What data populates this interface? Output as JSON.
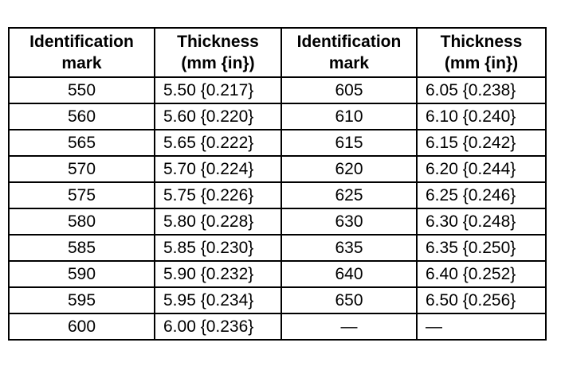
{
  "table": {
    "header": [
      [
        "Identification",
        "mark"
      ],
      [
        "Thickness",
        "(mm {in})"
      ],
      [
        "Identification",
        "mark"
      ],
      [
        "Thickness",
        "(mm {in})"
      ]
    ],
    "rows": [
      [
        "550",
        "5.50 {0.217}",
        "605",
        "6.05 {0.238}"
      ],
      [
        "560",
        "5.60 {0.220}",
        "610",
        "6.10 {0.240}"
      ],
      [
        "565",
        "5.65 {0.222}",
        "615",
        "6.15 {0.242}"
      ],
      [
        "570",
        "5.70 {0.224}",
        "620",
        "6.20 {0.244}"
      ],
      [
        "575",
        "5.75 {0.226}",
        "625",
        "6.25 {0.246}"
      ],
      [
        "580",
        "5.80 {0.228}",
        "630",
        "6.30 {0.248}"
      ],
      [
        "585",
        "5.85 {0.230}",
        "635",
        "6.35 {0.250}"
      ],
      [
        "590",
        "5.90 {0.232}",
        "640",
        "6.40 {0.252}"
      ],
      [
        "595",
        "5.95 {0.234}",
        "650",
        "6.50 {0.256}"
      ],
      [
        "600",
        "6.00 {0.236}",
        "—",
        "—"
      ]
    ]
  }
}
